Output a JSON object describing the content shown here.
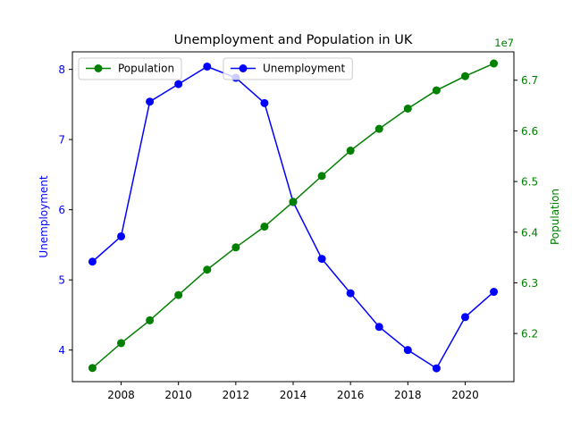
{
  "chart_data": {
    "type": "line",
    "title": "Unemployment and Population in UK",
    "x": [
      2007,
      2008,
      2009,
      2010,
      2011,
      2012,
      2013,
      2014,
      2015,
      2016,
      2017,
      2018,
      2019,
      2020,
      2021
    ],
    "x_ticks": [
      2008,
      2010,
      2012,
      2014,
      2016,
      2018,
      2020
    ],
    "xlim": [
      2006.3,
      2021.7
    ],
    "grid": false,
    "left_axis": {
      "label": "Unemployment",
      "color": "#0000ff",
      "ylim": [
        3.55,
        8.25
      ],
      "ticks": [
        4,
        5,
        6,
        7,
        8
      ]
    },
    "right_axis": {
      "label": "Population",
      "color": "#008000",
      "offset_text": "1e7",
      "ylim": [
        61050000,
        67560000
      ],
      "ticks": [
        6.2,
        6.3,
        6.4,
        6.5,
        6.6,
        6.7
      ],
      "tick_scale": 10000000
    },
    "series": [
      {
        "name": "Unemployment",
        "axis": "left",
        "color": "#0000ff",
        "legend_position": "upper center",
        "values": [
          5.26,
          5.62,
          7.54,
          7.79,
          8.04,
          7.88,
          7.52,
          6.11,
          5.3,
          4.81,
          4.33,
          4.0,
          3.74,
          4.47,
          4.83
        ]
      },
      {
        "name": "Population",
        "axis": "right",
        "color": "#008000",
        "legend_position": "upper left",
        "values": [
          61320000,
          61810000,
          62260000,
          62760000,
          63260000,
          63700000,
          64110000,
          64600000,
          65110000,
          65610000,
          66040000,
          66440000,
          66800000,
          67080000,
          67330000
        ]
      }
    ]
  }
}
